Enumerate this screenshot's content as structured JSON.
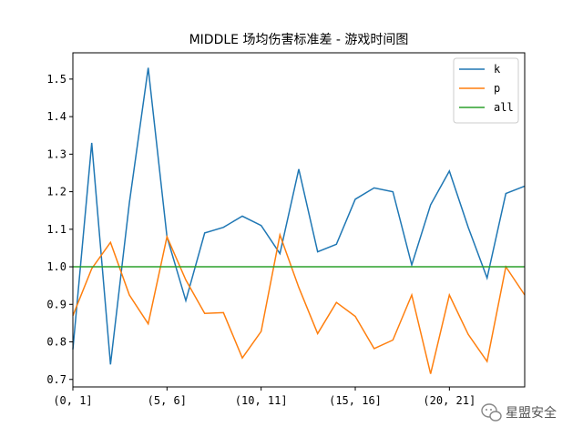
{
  "chart_data": {
    "type": "line",
    "title": "MIDDLE 场均伤害标准差 - 游戏时间图",
    "xlabel": "",
    "ylabel": "",
    "x_tick_labels": [
      "(0, 1]",
      "(5, 6]",
      "(10, 11]",
      "(15, 16]",
      "(20, 21]"
    ],
    "x_tick_positions": [
      0,
      5,
      10,
      15,
      20
    ],
    "xlim": [
      0,
      24
    ],
    "ylim": [
      0.68,
      1.57
    ],
    "y_ticks": [
      0.7,
      0.8,
      0.9,
      1.0,
      1.1,
      1.2,
      1.3,
      1.4,
      1.5
    ],
    "y_tick_labels": [
      "0.7",
      "0.8",
      "0.9",
      "1.0",
      "1.1",
      "1.2",
      "1.3",
      "1.4",
      "1.5"
    ],
    "legend_position": "top-right",
    "grid": false,
    "series": [
      {
        "name": "k",
        "color": "#1f77b4",
        "values": [
          0.78,
          1.33,
          0.74,
          1.17,
          1.53,
          1.08,
          0.91,
          1.09,
          1.105,
          1.135,
          1.11,
          1.035,
          1.26,
          1.04,
          1.06,
          1.18,
          1.21,
          1.2,
          1.005,
          1.165,
          1.255,
          1.105,
          0.97,
          1.195,
          1.215
        ]
      },
      {
        "name": "p",
        "color": "#ff7f0e",
        "values": [
          0.87,
          0.995,
          1.065,
          0.925,
          0.848,
          1.08,
          0.965,
          0.876,
          0.878,
          0.757,
          0.828,
          1.085,
          0.945,
          0.822,
          0.905,
          0.868,
          0.782,
          0.805,
          0.925,
          0.715,
          0.925,
          0.82,
          0.748,
          1.0,
          0.925
        ]
      },
      {
        "name": "all",
        "color": "#2ca02c",
        "values": [
          1.0,
          1.0
        ]
      }
    ]
  },
  "watermark": {
    "text": "星盟安全",
    "icon": "wechat-icon"
  }
}
